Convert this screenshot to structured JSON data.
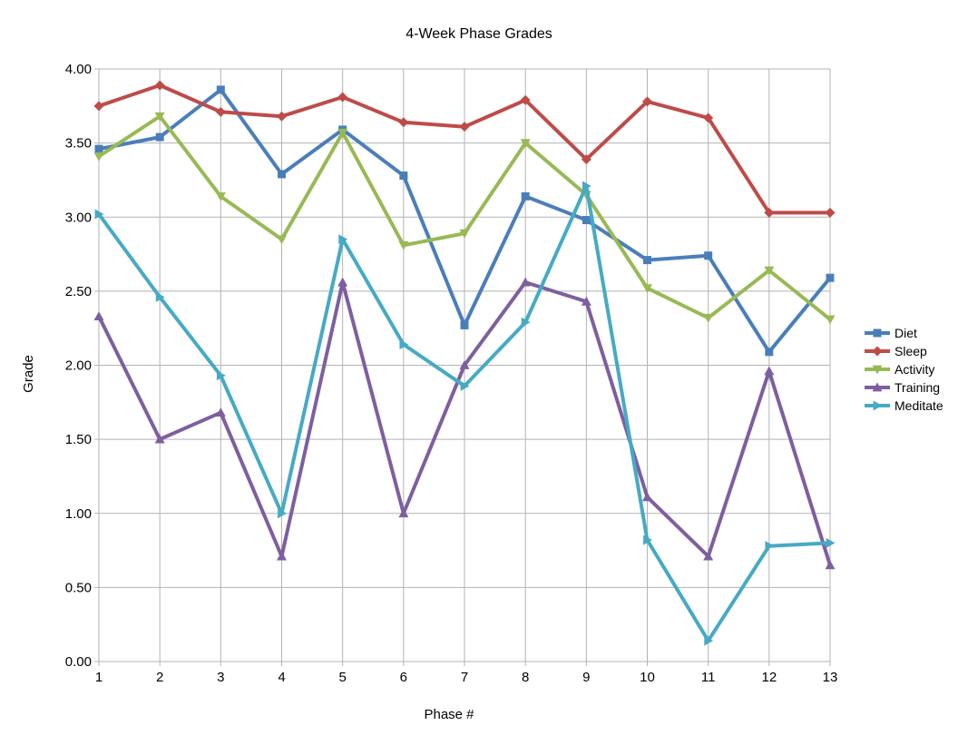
{
  "chart_data": {
    "type": "line",
    "title": "4-Week Phase Grades",
    "xlabel": "Phase #",
    "ylabel": "Grade",
    "x": [
      1,
      2,
      3,
      4,
      5,
      6,
      7,
      8,
      9,
      10,
      11,
      12,
      13
    ],
    "ylim": [
      0,
      4
    ],
    "yticks": [
      "0.00",
      "0.50",
      "1.00",
      "1.50",
      "2.00",
      "2.50",
      "3.00",
      "3.50",
      "4.00"
    ],
    "grid": true,
    "legend_position": "right",
    "series": [
      {
        "name": "Diet",
        "color": "#4a7ebb",
        "marker": "square",
        "values": [
          3.46,
          3.54,
          3.86,
          3.29,
          3.59,
          3.28,
          2.27,
          3.14,
          2.98,
          2.71,
          2.74,
          2.09,
          2.59
        ]
      },
      {
        "name": "Sleep",
        "color": "#be4b48",
        "marker": "diamond",
        "values": [
          3.75,
          3.89,
          3.71,
          3.68,
          3.81,
          3.64,
          3.61,
          3.79,
          3.39,
          3.78,
          3.67,
          3.03,
          3.03
        ]
      },
      {
        "name": "Activity",
        "color": "#98b954",
        "marker": "triangle-down",
        "values": [
          3.41,
          3.68,
          3.14,
          2.85,
          3.57,
          2.81,
          2.89,
          3.5,
          3.15,
          2.52,
          2.32,
          2.64,
          2.31
        ]
      },
      {
        "name": "Training",
        "color": "#7d5fa0",
        "marker": "triangle-up",
        "values": [
          2.33,
          1.5,
          1.68,
          0.71,
          2.56,
          1.0,
          2.0,
          2.56,
          2.43,
          1.11,
          0.71,
          1.96,
          0.65
        ]
      },
      {
        "name": "Meditate",
        "color": "#46aac5",
        "marker": "triangle-right",
        "values": [
          3.02,
          2.46,
          1.93,
          1.0,
          2.85,
          2.14,
          1.86,
          2.29,
          3.21,
          0.82,
          0.14,
          0.78,
          0.8
        ]
      }
    ]
  }
}
